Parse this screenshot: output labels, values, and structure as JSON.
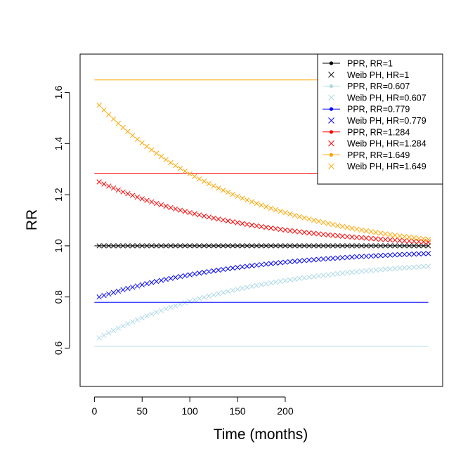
{
  "chart_data": {
    "type": "line",
    "title": "",
    "xlabel": "Time (months)",
    "ylabel": "RR",
    "xlim": [
      -15,
      365
    ],
    "ylim": [
      0.45,
      1.75
    ],
    "x_ticks": [
      0,
      50,
      100,
      150,
      200
    ],
    "y_ticks": [
      0.6,
      0.8,
      1.0,
      1.2,
      1.4,
      1.6
    ],
    "x_tick_labels": [
      "0",
      "50",
      "100",
      "150",
      "200"
    ],
    "y_tick_labels": [
      "0.6",
      "0.8",
      "1.0",
      "1.2",
      "1.4",
      "1.6"
    ],
    "legend_position": "top-right",
    "ppr_range": [
      0,
      350
    ],
    "weib_range": [
      5,
      350
    ],
    "weib_step": 5,
    "series": [
      {
        "name": "PPR, RR=1",
        "kind": "ppr",
        "value": 1.0,
        "color": "#000000"
      },
      {
        "name": "Weib PH, HR=1",
        "kind": "weib",
        "start": 1.0,
        "end": 1.0,
        "color": "#000000"
      },
      {
        "name": "PPR, RR=0.607",
        "kind": "ppr",
        "value": 0.607,
        "color": "#add8e6"
      },
      {
        "name": "Weib PH, HR=0.607",
        "kind": "weib",
        "start": 0.64,
        "end": 0.92,
        "color": "#add8e6"
      },
      {
        "name": "PPR, RR=0.779",
        "kind": "ppr",
        "value": 0.779,
        "color": "#0000ff"
      },
      {
        "name": "Weib PH, HR=0.779",
        "kind": "weib",
        "start": 0.8,
        "end": 0.97,
        "color": "#0000ff"
      },
      {
        "name": "PPR, RR=1.284",
        "kind": "ppr",
        "value": 1.284,
        "color": "#ff0000"
      },
      {
        "name": "Weib PH, HR=1.284",
        "kind": "weib",
        "start": 1.25,
        "end": 1.015,
        "color": "#ff0000"
      },
      {
        "name": "PPR, RR=1.649",
        "kind": "ppr",
        "value": 1.649,
        "color": "#ffa500"
      },
      {
        "name": "Weib PH, HR=1.649",
        "kind": "weib",
        "start": 1.55,
        "end": 1.025,
        "color": "#ffa500"
      }
    ]
  }
}
